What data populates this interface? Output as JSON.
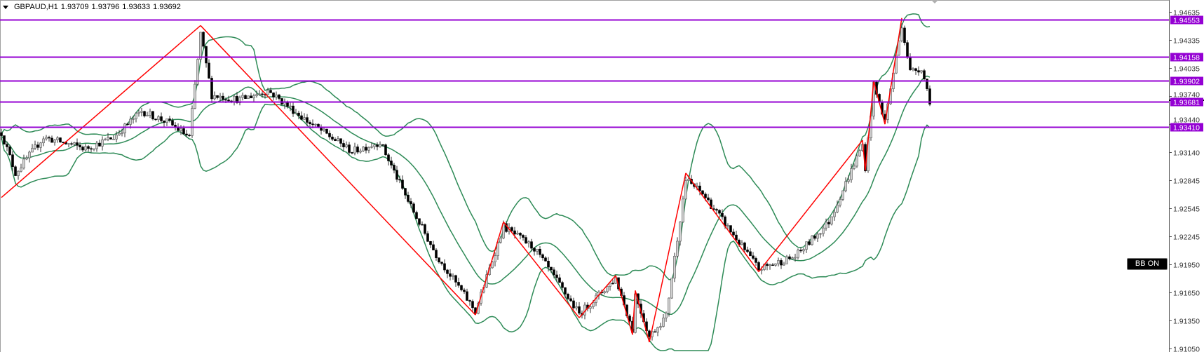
{
  "header": {
    "symbol": "GBPAUD,H1",
    "open": "1.93709",
    "high": "1.93796",
    "low": "1.93633",
    "close": "1.93692"
  },
  "indicator_button": "BB ON",
  "colors": {
    "level_line": "#9400d3",
    "zigzag": "#ff0000",
    "bollinger": "#2e8b57",
    "bear_candle": "#000000",
    "bull_candle": "#ffffff"
  },
  "chart_data": {
    "type": "candlestick",
    "symbol": "GBPAUD",
    "timeframe": "H1",
    "y_ticks": [
      "1.94635",
      "1.94335",
      "1.94035",
      "1.93740",
      "1.93440",
      "1.93140",
      "1.92845",
      "1.92545",
      "1.92245",
      "1.91950",
      "1.91650",
      "1.91350",
      "1.91050"
    ],
    "ylim": [
      1.91,
      1.9475
    ],
    "current_price": 1.93692,
    "levels": [
      "1.94553",
      "1.94158",
      "1.93902",
      "1.93681",
      "1.93410"
    ],
    "zigzag": [
      [
        0,
        1.9266
      ],
      [
        71,
        1.9449
      ],
      [
        169,
        1.9141
      ],
      [
        179,
        1.924
      ],
      [
        206,
        1.9138
      ],
      [
        219,
        1.9183
      ],
      [
        225,
        1.912
      ],
      [
        226,
        1.9167
      ],
      [
        231,
        1.9112
      ],
      [
        244,
        1.9292
      ],
      [
        270,
        1.9187
      ],
      [
        307,
        1.9327
      ],
      [
        308,
        1.9295
      ],
      [
        311,
        1.939
      ],
      [
        315,
        1.9344
      ],
      [
        321,
        1.9457
      ]
    ],
    "indicators": [
      "Bollinger Bands",
      "ZigZag"
    ]
  }
}
